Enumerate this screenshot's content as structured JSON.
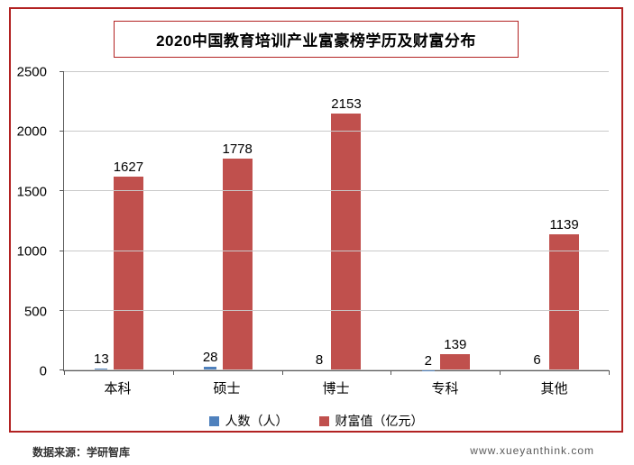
{
  "chart": {
    "title": "2020中国教育培训产业富豪榜学历及财富分布",
    "footer_left": "数据来源：学研智库",
    "footer_right": "www.xueyanthink.com"
  },
  "chart_data": {
    "type": "bar",
    "title": "2020中国教育培训产业富豪榜学历及财富分布",
    "categories": [
      "本科",
      "硕士",
      "博士",
      "专科",
      "其他"
    ],
    "series": [
      {
        "name": "人数（人）",
        "color": "#4F81BD",
        "values": [
          13,
          28,
          8,
          2,
          6
        ]
      },
      {
        "name": "财富值（亿元）",
        "color": "#C0504D",
        "values": [
          1627,
          1778,
          2153,
          139,
          1139
        ]
      }
    ],
    "xlabel": "",
    "ylabel": "",
    "ylim": [
      0,
      2500
    ],
    "yticks": [
      0,
      500,
      1000,
      1500,
      2000,
      2500
    ],
    "grid": true,
    "legend_position": "bottom",
    "accent_border_color": "#b22222"
  }
}
